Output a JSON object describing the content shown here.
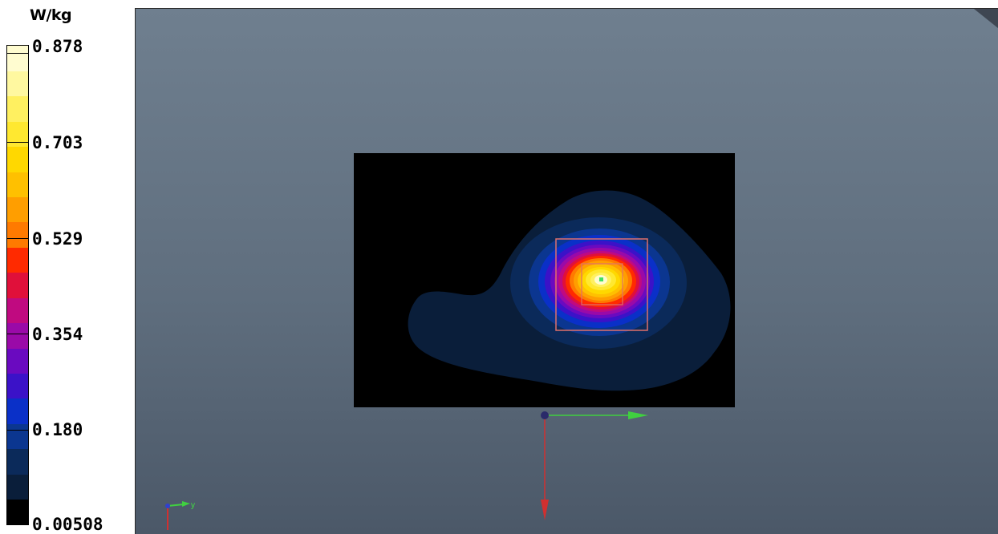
{
  "legend": {
    "unit": "W/kg",
    "tick_labels": [
      "0.878",
      "0.703",
      "0.529",
      "0.354",
      "0.180",
      "0.00508"
    ]
  },
  "chart_data": {
    "type": "heatmap",
    "colorbar": {
      "unit": "W/kg",
      "min": 0.00508,
      "max": 0.878,
      "ticks": [
        0.878,
        0.703,
        0.529,
        0.354,
        0.18,
        0.00508
      ],
      "colors": [
        "#000000",
        "#0a1e3a",
        "#0b2a5a",
        "#0b3690",
        "#0a30c8",
        "#3b12c8",
        "#6a0ac0",
        "#9a0aa8",
        "#c00a80",
        "#e0103a",
        "#ff2a00",
        "#ff7a00",
        "#ff9e00",
        "#ffc000",
        "#ffd800",
        "#ffe830",
        "#fff060",
        "#fff8a0",
        "#fffcd0"
      ]
    },
    "peak": {
      "value": 0.878,
      "unit": "W/kg"
    },
    "axes": {
      "triad_labels": [
        "y"
      ]
    },
    "colors": {
      "background_top": "#6f7f8f",
      "background_bottom": "#4b5868",
      "scan_area": "#000000",
      "zoom_box": "#e0706a",
      "peak_marker": "#40e060"
    }
  }
}
